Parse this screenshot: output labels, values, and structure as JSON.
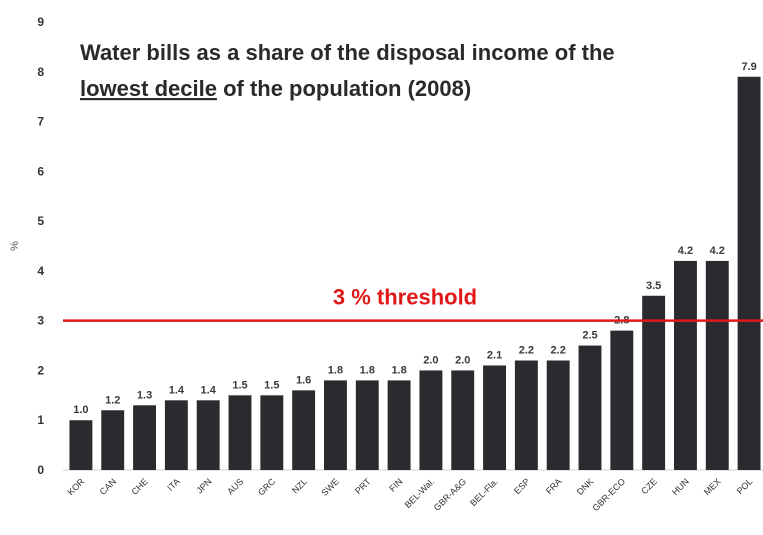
{
  "chart_data": {
    "type": "bar",
    "title_line1": "Water bills as a share of the disposal income of the",
    "title_line2_underlined": "lowest decile",
    "title_line2_rest": " of the population (2008)",
    "ylabel": "%",
    "ylim": [
      0,
      9
    ],
    "yticks": [
      "0",
      "1",
      "2",
      "3",
      "4",
      "5",
      "6",
      "7",
      "8",
      "9"
    ],
    "categories": [
      "KOR",
      "CAN",
      "CHE",
      "ITA",
      "JPN",
      "AUS",
      "GRC",
      "NZL",
      "SWE",
      "PRT",
      "FIN",
      "BEL-Wal.",
      "GBR-A&G",
      "BEL-Fla.",
      "ESP",
      "FRA",
      "DNK",
      "GBR-ECO",
      "CZE",
      "HUN",
      "MEX",
      "POL"
    ],
    "values": [
      1.0,
      1.2,
      1.3,
      1.4,
      1.4,
      1.5,
      1.5,
      1.6,
      1.8,
      1.8,
      1.8,
      2.0,
      2.0,
      2.1,
      2.2,
      2.2,
      2.5,
      2.8,
      3.5,
      4.2,
      4.2,
      7.9
    ],
    "value_labels": [
      "1.0",
      "1.2",
      "1.3",
      "1.4",
      "1.4",
      "1.5",
      "1.5",
      "1.6",
      "1.8",
      "1.8",
      "1.8",
      "2.0",
      "2.0",
      "2.1",
      "2.2",
      "2.2",
      "2.5",
      "2.8",
      "3.5",
      "4.2",
      "4.2",
      "7.9"
    ],
    "threshold": {
      "value": 3.0,
      "label": "3 % threshold",
      "color": "#e01818"
    },
    "bar_color": "#2b2a2e",
    "grid": false
  }
}
